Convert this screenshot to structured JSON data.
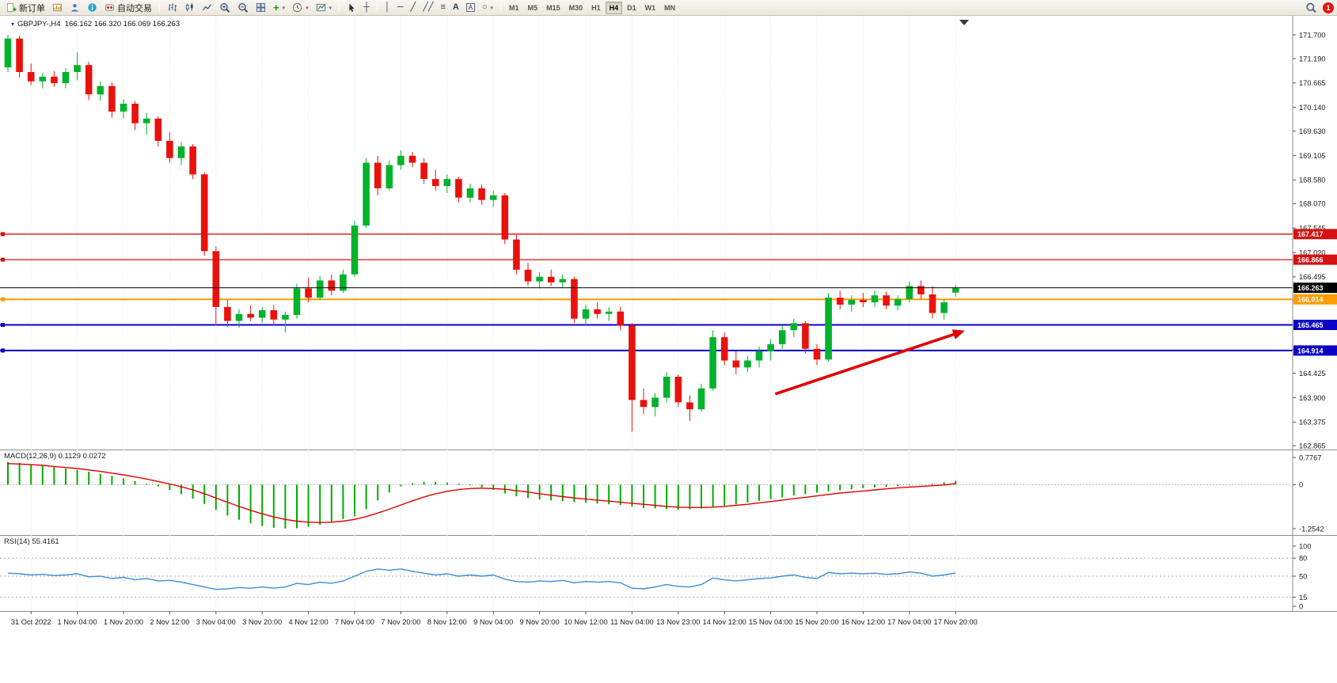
{
  "toolbar": {
    "new_order_label": "新订单",
    "auto_trading_label": "自动交易",
    "timeframes": [
      "M1",
      "M5",
      "M15",
      "M30",
      "H1",
      "H4",
      "D1",
      "W1",
      "MN"
    ],
    "active_timeframe": "H4",
    "notification_count": "1"
  },
  "icons": {
    "collapse": "▾",
    "caret": "▾",
    "vline": "│",
    "hline": "─",
    "trendline": "╱",
    "channel": "╱╱",
    "fibonacci": "≡",
    "text_tool": "A",
    "label_tool": "A",
    "shapes": "○",
    "crosshair": "┼",
    "indicators_plus": "+"
  },
  "chart": {
    "symbol": "GBPJPY-,H4",
    "ohlc": "166.162 166.320 166.069 166.263",
    "macd_label": "MACD(12,26,9) 0.1129 0.0272",
    "rsi_label": "RSI(14) 55.4161"
  },
  "chart_data": {
    "type": "candlestick",
    "symbol": "GBPJPY-",
    "timeframe": "H4",
    "last_ohlc": {
      "open": 166.162,
      "high": 166.32,
      "low": 166.069,
      "close": 166.263
    },
    "colors": {
      "up": "#00b22c",
      "down": "#e8120c",
      "macd_hist": "#00ad00",
      "macd_signal": "#e30000",
      "rsi": "#3c8fd6",
      "grid": "#e4e4e4"
    },
    "y_axis": {
      "max": 171.7,
      "min": 162.865,
      "labels": [
        "171.700",
        "171.190",
        "170.665",
        "170.140",
        "169.630",
        "169.105",
        "168.580",
        "168.070",
        "167.545",
        "167.020",
        "166.495",
        "165.985",
        "165.460",
        "164.935",
        "164.425",
        "163.900",
        "163.375",
        "162.865"
      ]
    },
    "x_axis_labels": [
      "31 Oct 2022",
      "1 Nov 04:00",
      "1 Nov 20:00",
      "2 Nov 12:00",
      "3 Nov 04:00",
      "3 Nov 20:00",
      "4 Nov 12:00",
      "7 Nov 04:00",
      "7 Nov 20:00",
      "8 Nov 12:00",
      "9 Nov 04:00",
      "9 Nov 20:00",
      "10 Nov 12:00",
      "11 Nov 04:00",
      "13 Nov 23:00",
      "14 Nov 12:00",
      "15 Nov 04:00",
      "15 Nov 20:00",
      "16 Nov 12:00",
      "17 Nov 04:00",
      "17 Nov 20:00"
    ],
    "h_lines": [
      {
        "price": 167.417,
        "label": "167.417",
        "color": "#d61111",
        "width": 1.3
      },
      {
        "price": 166.866,
        "label": "166.866",
        "color": "#d61111",
        "width": 1.3
      },
      {
        "price": 166.263,
        "label": "166.263",
        "color": "#000000",
        "width": 1,
        "bid": true
      },
      {
        "price": 166.014,
        "label": "166.014",
        "color": "#ff9c00",
        "width": 2
      },
      {
        "price": 165.465,
        "label": "165.465",
        "color": "#0a00c8",
        "width": 2
      },
      {
        "price": 164.914,
        "label": "164.914",
        "color": "#0a00c8",
        "width": 2
      }
    ],
    "arrow": {
      "from": {
        "index": 66.4,
        "price": 163.98
      },
      "to": {
        "index": 82.8,
        "price": 165.34
      },
      "color": "#e00000"
    },
    "candles": [
      [
        171.0,
        171.7,
        170.9,
        171.62
      ],
      [
        171.62,
        171.68,
        170.78,
        170.9
      ],
      [
        170.9,
        171.08,
        170.62,
        170.7
      ],
      [
        170.7,
        170.88,
        170.55,
        170.8
      ],
      [
        170.8,
        170.92,
        170.58,
        170.66
      ],
      [
        170.66,
        170.98,
        170.55,
        170.9
      ],
      [
        170.9,
        171.32,
        170.72,
        171.05
      ],
      [
        171.05,
        171.12,
        170.3,
        170.42
      ],
      [
        170.42,
        170.7,
        170.28,
        170.6
      ],
      [
        170.6,
        170.68,
        169.92,
        170.05
      ],
      [
        170.05,
        170.32,
        169.9,
        170.22
      ],
      [
        170.22,
        170.28,
        169.65,
        169.8
      ],
      [
        169.8,
        170.02,
        169.55,
        169.9
      ],
      [
        169.9,
        169.95,
        169.3,
        169.42
      ],
      [
        169.42,
        169.6,
        168.95,
        169.05
      ],
      [
        169.05,
        169.4,
        168.9,
        169.3
      ],
      [
        169.3,
        169.35,
        168.6,
        168.7
      ],
      [
        168.7,
        168.75,
        166.95,
        167.05
      ],
      [
        167.05,
        167.15,
        165.45,
        165.85
      ],
      [
        165.85,
        166.0,
        165.42,
        165.55
      ],
      [
        165.55,
        165.8,
        165.4,
        165.7
      ],
      [
        165.7,
        165.88,
        165.55,
        165.62
      ],
      [
        165.62,
        165.85,
        165.5,
        165.78
      ],
      [
        165.78,
        165.9,
        165.45,
        165.58
      ],
      [
        165.58,
        165.75,
        165.3,
        165.68
      ],
      [
        165.68,
        166.35,
        165.6,
        166.25
      ],
      [
        166.25,
        166.48,
        165.95,
        166.05
      ],
      [
        166.05,
        166.52,
        166.0,
        166.42
      ],
      [
        166.42,
        166.55,
        166.1,
        166.2
      ],
      [
        166.2,
        166.65,
        166.15,
        166.55
      ],
      [
        166.55,
        167.7,
        166.5,
        167.6
      ],
      [
        167.6,
        169.05,
        167.55,
        168.95
      ],
      [
        168.95,
        169.1,
        168.25,
        168.4
      ],
      [
        168.4,
        169.0,
        168.35,
        168.9
      ],
      [
        168.9,
        169.22,
        168.8,
        169.1
      ],
      [
        169.1,
        169.18,
        168.85,
        168.95
      ],
      [
        168.95,
        169.05,
        168.5,
        168.6
      ],
      [
        168.6,
        168.8,
        168.35,
        168.45
      ],
      [
        168.45,
        168.7,
        168.3,
        168.6
      ],
      [
        168.6,
        168.65,
        168.1,
        168.2
      ],
      [
        168.2,
        168.5,
        168.1,
        168.4
      ],
      [
        168.4,
        168.48,
        168.05,
        168.15
      ],
      [
        168.15,
        168.35,
        168.0,
        168.25
      ],
      [
        168.25,
        168.3,
        167.2,
        167.3
      ],
      [
        167.3,
        167.4,
        166.55,
        166.65
      ],
      [
        166.65,
        166.8,
        166.3,
        166.4
      ],
      [
        166.4,
        166.6,
        166.25,
        166.5
      ],
      [
        166.5,
        166.65,
        166.3,
        166.38
      ],
      [
        166.38,
        166.55,
        166.25,
        166.45
      ],
      [
        166.45,
        166.5,
        165.5,
        165.6
      ],
      [
        165.6,
        165.9,
        165.45,
        165.8
      ],
      [
        165.8,
        165.95,
        165.6,
        165.7
      ],
      [
        165.7,
        165.85,
        165.55,
        165.75
      ],
      [
        165.75,
        165.85,
        165.35,
        165.45
      ],
      [
        165.45,
        165.5,
        163.17,
        163.85
      ],
      [
        163.85,
        164.1,
        163.55,
        163.7
      ],
      [
        163.7,
        164.0,
        163.5,
        163.9
      ],
      [
        163.9,
        164.45,
        163.8,
        164.35
      ],
      [
        164.35,
        164.4,
        163.7,
        163.8
      ],
      [
        163.8,
        163.95,
        163.4,
        163.65
      ],
      [
        163.65,
        164.2,
        163.6,
        164.1
      ],
      [
        164.1,
        165.35,
        164.05,
        165.2
      ],
      [
        165.2,
        165.3,
        164.6,
        164.7
      ],
      [
        164.7,
        164.9,
        164.4,
        164.55
      ],
      [
        164.55,
        164.8,
        164.45,
        164.7
      ],
      [
        164.7,
        165.0,
        164.55,
        164.9
      ],
      [
        164.9,
        165.15,
        164.7,
        165.05
      ],
      [
        165.05,
        165.45,
        164.95,
        165.35
      ],
      [
        165.35,
        165.6,
        165.2,
        165.5
      ],
      [
        165.5,
        165.55,
        164.85,
        164.95
      ],
      [
        164.95,
        165.05,
        164.6,
        164.72
      ],
      [
        164.72,
        166.15,
        164.68,
        166.05
      ],
      [
        166.05,
        166.2,
        165.8,
        165.9
      ],
      [
        165.9,
        166.1,
        165.75,
        166.0
      ],
      [
        166.0,
        166.15,
        165.85,
        165.95
      ],
      [
        165.95,
        166.2,
        165.85,
        166.1
      ],
      [
        166.1,
        166.18,
        165.8,
        165.88
      ],
      [
        165.88,
        166.1,
        165.78,
        166.02
      ],
      [
        166.02,
        166.4,
        165.95,
        166.3
      ],
      [
        166.3,
        166.42,
        166.02,
        166.12
      ],
      [
        166.12,
        166.3,
        165.6,
        165.72
      ],
      [
        165.72,
        166.0,
        165.58,
        165.95
      ],
      [
        166.16,
        166.32,
        166.07,
        166.26
      ]
    ],
    "macd": {
      "axis_labels": [
        "0.7767",
        "0",
        "-1.2542"
      ],
      "histogram": [
        0.65,
        0.62,
        0.58,
        0.54,
        0.5,
        0.46,
        0.42,
        0.37,
        0.31,
        0.25,
        0.18,
        0.1,
        0.03,
        -0.05,
        -0.15,
        -0.27,
        -0.4,
        -0.55,
        -0.72,
        -0.88,
        -1.0,
        -1.1,
        -1.18,
        -1.23,
        -1.25,
        -1.24,
        -1.2,
        -1.14,
        -1.06,
        -0.98,
        -0.9,
        -0.7,
        -0.45,
        -0.22,
        -0.05,
        0.04,
        0.08,
        0.08,
        0.06,
        0.03,
        -0.02,
        -0.08,
        -0.15,
        -0.25,
        -0.33,
        -0.38,
        -0.42,
        -0.45,
        -0.47,
        -0.5,
        -0.52,
        -0.54,
        -0.56,
        -0.58,
        -0.62,
        -0.66,
        -0.68,
        -0.7,
        -0.71,
        -0.7,
        -0.68,
        -0.64,
        -0.6,
        -0.56,
        -0.51,
        -0.46,
        -0.41,
        -0.36,
        -0.31,
        -0.27,
        -0.23,
        -0.19,
        -0.16,
        -0.13,
        -0.1,
        -0.08,
        -0.06,
        -0.04,
        -0.02,
        0.01,
        0.03,
        0.07,
        0.11
      ],
      "signal": [
        0.6,
        0.59,
        0.57,
        0.55,
        0.52,
        0.49,
        0.46,
        0.42,
        0.38,
        0.33,
        0.28,
        0.22,
        0.16,
        0.09,
        0.02,
        -0.06,
        -0.15,
        -0.26,
        -0.38,
        -0.5,
        -0.62,
        -0.73,
        -0.83,
        -0.92,
        -0.99,
        -1.04,
        -1.07,
        -1.08,
        -1.07,
        -1.04,
        -0.99,
        -0.91,
        -0.81,
        -0.7,
        -0.58,
        -0.46,
        -0.35,
        -0.26,
        -0.19,
        -0.14,
        -0.11,
        -0.1,
        -0.11,
        -0.13,
        -0.17,
        -0.21,
        -0.26,
        -0.3,
        -0.34,
        -0.38,
        -0.41,
        -0.44,
        -0.47,
        -0.5,
        -0.53,
        -0.56,
        -0.59,
        -0.62,
        -0.64,
        -0.65,
        -0.65,
        -0.64,
        -0.62,
        -0.59,
        -0.56,
        -0.52,
        -0.48,
        -0.44,
        -0.4,
        -0.36,
        -0.32,
        -0.28,
        -0.24,
        -0.21,
        -0.18,
        -0.15,
        -0.12,
        -0.09,
        -0.07,
        -0.05,
        -0.03,
        -0.01,
        0.03
      ]
    },
    "rsi": {
      "axis_labels": [
        "100",
        "80",
        "50",
        "15",
        "0"
      ],
      "levels": [
        80,
        50,
        15
      ],
      "values": [
        55,
        54,
        52,
        53,
        51,
        52,
        54,
        49,
        50,
        46,
        48,
        44,
        46,
        42,
        43,
        40,
        36,
        32,
        28,
        29,
        31,
        30,
        32,
        30,
        32,
        38,
        36,
        40,
        38,
        42,
        50,
        58,
        62,
        60,
        62,
        58,
        55,
        52,
        54,
        50,
        52,
        50,
        52,
        45,
        41,
        40,
        42,
        41,
        43,
        39,
        41,
        40,
        41,
        39,
        30,
        29,
        32,
        36,
        33,
        32,
        36,
        47,
        44,
        42,
        44,
        46,
        47,
        50,
        52,
        48,
        46,
        56,
        54,
        55,
        54,
        55,
        53,
        54,
        57,
        55,
        50,
        52,
        55.4
      ]
    }
  }
}
